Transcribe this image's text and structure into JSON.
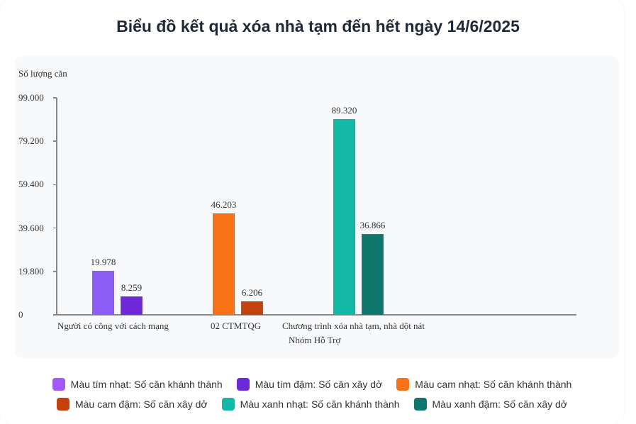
{
  "title": "Biểu đồ kết quả xóa nhà tạm đến hết ngày 14/6/2025",
  "y_axis": {
    "label": "Số lượng căn",
    "ticks": [
      "0",
      "19.800",
      "39.600",
      "59.400",
      "79.200",
      "99.000"
    ]
  },
  "groups": [
    {
      "label": "Người có công với cách mạng",
      "bars": [
        {
          "value": 19978,
          "text": "19.978",
          "color": "#8b5cf6"
        },
        {
          "value": 8259,
          "text": "8.259",
          "color": "#6d28d9"
        }
      ]
    },
    {
      "label": "02 CTMTQG",
      "bars": [
        {
          "value": 46203,
          "text": "46.203",
          "color": "#f97316"
        },
        {
          "value": 6206,
          "text": "6.206",
          "color": "#c2410c"
        }
      ]
    },
    {
      "label": "Chương trình xóa nhà tạm, nhà dột nát",
      "label2": "Nhóm Hỗ Trợ",
      "bars": [
        {
          "value": 89320,
          "text": "89.320",
          "color": "#14b8a6"
        },
        {
          "value": 36866,
          "text": "36.866",
          "color": "#0f766e"
        }
      ]
    }
  ],
  "legend": [
    {
      "label": "Màu tím nhạt: Số căn khánh thành",
      "color": "#a259f7"
    },
    {
      "label": "Màu tím đậm: Số căn xây dở",
      "color": "#6d28d9"
    },
    {
      "label": "Màu cam nhạt: Số căn khánh thành",
      "color": "#f97316"
    },
    {
      "label": "Màu cam đậm: Số căn xây dở",
      "color": "#c2410c"
    },
    {
      "label": "Màu xanh nhạt: Số căn khánh thành",
      "color": "#14b8a6"
    },
    {
      "label": "Màu xanh đậm: Số căn xây dở",
      "color": "#0f766e"
    }
  ],
  "chart_data": {
    "type": "bar",
    "title": "Biểu đồ kết quả xóa nhà tạm đến hết ngày 14/6/2025",
    "xlabel": "",
    "ylabel": "Số lượng căn",
    "ylim": [
      0,
      99000
    ],
    "yticks": [
      0,
      19800,
      39600,
      59400,
      79200,
      99000
    ],
    "categories": [
      "Người có công với cách mạng",
      "02 CTMTQG",
      "Chương trình xóa nhà tạm, nhà dột nát / Nhóm Hỗ Trợ"
    ],
    "series": [
      {
        "name": "Số căn khánh thành",
        "values": [
          19978,
          46203,
          89320
        ],
        "colors": [
          "#8b5cf6",
          "#f97316",
          "#14b8a6"
        ]
      },
      {
        "name": "Số căn xây dở",
        "values": [
          8259,
          6206,
          36866
        ],
        "colors": [
          "#6d28d9",
          "#c2410c",
          "#0f766e"
        ]
      }
    ],
    "legend_position": "bottom",
    "grid": false
  }
}
